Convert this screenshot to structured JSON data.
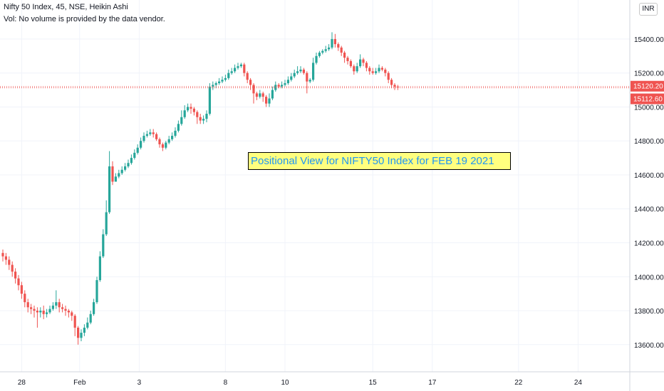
{
  "header": {
    "symbol_line": "Nifty 50 Index, 45, NSE, Heikin Ashi",
    "volume_line": "Vol: No volume is provided by the data vendor."
  },
  "currency_button": "INR",
  "annotation": "Positional View for NIFTY50 Index for FEB 19 2021",
  "colors": {
    "up": "#26a69a",
    "down": "#ef5350",
    "grid": "#f0f3fa",
    "axis_text": "#131722"
  },
  "chart_data": {
    "type": "candlestick",
    "style": "Heikin Ashi",
    "interval": "45",
    "x_tick_labels": [
      "28",
      "Feb",
      "3",
      "8",
      "10",
      "15",
      "17",
      "22",
      "24"
    ],
    "y_ticks": [
      13600,
      13800,
      14000,
      14200,
      14400,
      14600,
      14800,
      15000,
      15200,
      15400
    ],
    "y_tick_labels": [
      "13600.00",
      "13800.00",
      "14000.00",
      "14200.00",
      "14400.00",
      "14600.00",
      "14800.00",
      "15000.00",
      "15200.00",
      "15400.00"
    ],
    "ylim": [
      13440,
      15630
    ],
    "grid": true,
    "price_labels": [
      {
        "value": 15120.2,
        "label": "15120.20"
      },
      {
        "value": 15112.6,
        "label": "15112.60"
      }
    ],
    "candles": [
      [
        14140,
        14120,
        14160,
        14090
      ],
      [
        14120,
        14100,
        14140,
        14070
      ],
      [
        14100,
        14070,
        14120,
        14040
      ],
      [
        14070,
        14030,
        14090,
        14000
      ],
      [
        14030,
        13990,
        14050,
        13960
      ],
      [
        13990,
        13950,
        14010,
        13920
      ],
      [
        13950,
        13900,
        13970,
        13870
      ],
      [
        13900,
        13850,
        13920,
        13820
      ],
      [
        13850,
        13820,
        13870,
        13790
      ],
      [
        13820,
        13810,
        13840,
        13780
      ],
      [
        13810,
        13800,
        13830,
        13760
      ],
      [
        13800,
        13790,
        13820,
        13700
      ],
      [
        13790,
        13800,
        13820,
        13760
      ],
      [
        13800,
        13780,
        13830,
        13750
      ],
      [
        13780,
        13790,
        13810,
        13760
      ],
      [
        13790,
        13810,
        13830,
        13780
      ],
      [
        13810,
        13830,
        13850,
        13800
      ],
      [
        13830,
        13850,
        13920,
        13810
      ],
      [
        13850,
        13820,
        13870,
        13790
      ],
      [
        13820,
        13810,
        13840,
        13790
      ],
      [
        13810,
        13800,
        13830,
        13770
      ],
      [
        13800,
        13790,
        13810,
        13760
      ],
      [
        13790,
        13770,
        13800,
        13740
      ],
      [
        13770,
        13700,
        13780,
        13650
      ],
      [
        13700,
        13640,
        13710,
        13600
      ],
      [
        13640,
        13670,
        13690,
        13620
      ],
      [
        13670,
        13700,
        13720,
        13650
      ],
      [
        13700,
        13730,
        13760,
        13690
      ],
      [
        13730,
        13780,
        13800,
        13720
      ],
      [
        13780,
        13850,
        13870,
        13770
      ],
      [
        13850,
        13980,
        14000,
        13840
      ],
      [
        13980,
        14120,
        14150,
        13970
      ],
      [
        14120,
        14250,
        14280,
        14110
      ],
      [
        14250,
        14380,
        14450,
        14240
      ],
      [
        14380,
        14650,
        14740,
        14370
      ],
      [
        14650,
        14560,
        14680,
        14540
      ],
      [
        14560,
        14590,
        14610,
        14560
      ],
      [
        14590,
        14610,
        14630,
        14580
      ],
      [
        14610,
        14630,
        14650,
        14600
      ],
      [
        14630,
        14650,
        14670,
        14620
      ],
      [
        14650,
        14670,
        14690,
        14640
      ],
      [
        14670,
        14700,
        14720,
        14660
      ],
      [
        14700,
        14730,
        14750,
        14690
      ],
      [
        14730,
        14760,
        14780,
        14720
      ],
      [
        14760,
        14800,
        14820,
        14750
      ],
      [
        14800,
        14830,
        14850,
        14790
      ],
      [
        14830,
        14840,
        14860,
        14820
      ],
      [
        14840,
        14850,
        14870,
        14830
      ],
      [
        14850,
        14840,
        14870,
        14820
      ],
      [
        14840,
        14810,
        14850,
        14800
      ],
      [
        14810,
        14780,
        14820,
        14760
      ],
      [
        14780,
        14760,
        14790,
        14740
      ],
      [
        14760,
        14790,
        14800,
        14750
      ],
      [
        14790,
        14810,
        14830,
        14780
      ],
      [
        14810,
        14830,
        14850,
        14800
      ],
      [
        14830,
        14860,
        14880,
        14820
      ],
      [
        14860,
        14900,
        14920,
        14850
      ],
      [
        14900,
        14940,
        14980,
        14890
      ],
      [
        14940,
        14980,
        15010,
        14930
      ],
      [
        14980,
        15000,
        15020,
        14970
      ],
      [
        15000,
        14990,
        15020,
        14960
      ],
      [
        14990,
        14970,
        15000,
        14950
      ],
      [
        14970,
        14940,
        14980,
        14900
      ],
      [
        14940,
        14920,
        14960,
        14900
      ],
      [
        14920,
        14930,
        14950,
        14900
      ],
      [
        14930,
        14960,
        14980,
        14910
      ],
      [
        14960,
        15120,
        15140,
        14950
      ],
      [
        15120,
        15130,
        15150,
        15100
      ],
      [
        15130,
        15140,
        15150,
        15110
      ],
      [
        15140,
        15150,
        15170,
        15130
      ],
      [
        15150,
        15160,
        15180,
        15140
      ],
      [
        15160,
        15170,
        15190,
        15150
      ],
      [
        15170,
        15200,
        15220,
        15160
      ],
      [
        15200,
        15210,
        15230,
        15190
      ],
      [
        15210,
        15230,
        15250,
        15200
      ],
      [
        15230,
        15240,
        15260,
        15220
      ],
      [
        15240,
        15250,
        15260,
        15230
      ],
      [
        15250,
        15200,
        15260,
        15180
      ],
      [
        15200,
        15160,
        15210,
        15140
      ],
      [
        15160,
        15130,
        15170,
        15100
      ],
      [
        15130,
        15080,
        15140,
        15020
      ],
      [
        15080,
        15060,
        15090,
        15040
      ],
      [
        15060,
        15080,
        15100,
        15050
      ],
      [
        15080,
        15060,
        15090,
        15030
      ],
      [
        15060,
        15020,
        15070,
        15000
      ],
      [
        15020,
        15050,
        15080,
        15000
      ],
      [
        15050,
        15100,
        15120,
        15040
      ],
      [
        15100,
        15130,
        15150,
        15090
      ],
      [
        15130,
        15120,
        15140,
        15110
      ],
      [
        15120,
        15130,
        15150,
        15110
      ],
      [
        15130,
        15140,
        15160,
        15120
      ],
      [
        15140,
        15160,
        15180,
        15130
      ],
      [
        15160,
        15180,
        15200,
        15150
      ],
      [
        15180,
        15200,
        15220,
        15170
      ],
      [
        15200,
        15210,
        15240,
        15190
      ],
      [
        15210,
        15220,
        15240,
        15200
      ],
      [
        15220,
        15200,
        15230,
        15190
      ],
      [
        15200,
        15150,
        15210,
        15080
      ],
      [
        15150,
        15160,
        15170,
        15140
      ],
      [
        15160,
        15260,
        15290,
        15150
      ],
      [
        15260,
        15300,
        15320,
        15250
      ],
      [
        15300,
        15320,
        15330,
        15290
      ],
      [
        15320,
        15330,
        15340,
        15310
      ],
      [
        15330,
        15340,
        15360,
        15320
      ],
      [
        15340,
        15350,
        15370,
        15330
      ],
      [
        15350,
        15400,
        15440,
        15340
      ],
      [
        15400,
        15370,
        15430,
        15350
      ],
      [
        15370,
        15350,
        15380,
        15330
      ],
      [
        15350,
        15320,
        15360,
        15300
      ],
      [
        15320,
        15290,
        15330,
        15260
      ],
      [
        15290,
        15270,
        15300,
        15250
      ],
      [
        15270,
        15240,
        15280,
        15230
      ],
      [
        15240,
        15210,
        15250,
        15190
      ],
      [
        15210,
        15240,
        15260,
        15200
      ],
      [
        15240,
        15280,
        15310,
        15230
      ],
      [
        15280,
        15260,
        15290,
        15240
      ],
      [
        15260,
        15230,
        15270,
        15210
      ],
      [
        15230,
        15210,
        15240,
        15190
      ],
      [
        15210,
        15200,
        15230,
        15190
      ],
      [
        15200,
        15210,
        15230,
        15190
      ],
      [
        15210,
        15230,
        15250,
        15200
      ],
      [
        15230,
        15220,
        15240,
        15210
      ],
      [
        15220,
        15200,
        15230,
        15180
      ],
      [
        15200,
        15160,
        15210,
        15140
      ],
      [
        15160,
        15130,
        15170,
        15110
      ],
      [
        15130,
        15120,
        15140,
        15100
      ],
      [
        15120,
        15115,
        15130,
        15100
      ]
    ]
  }
}
